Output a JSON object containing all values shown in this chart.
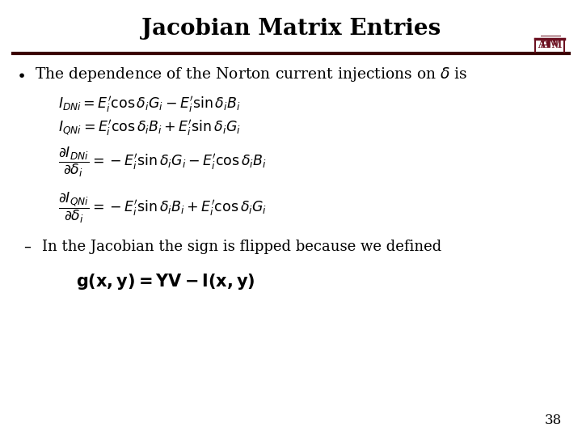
{
  "title": "Jacobian Matrix Entries",
  "title_fontsize": 20,
  "title_fontweight": "bold",
  "bg_color": "#ffffff",
  "title_color": "#000000",
  "text_color": "#000000",
  "line_color": "#3b0000",
  "logo_color": "#6b1020",
  "bullet_text": "The dependence of the Norton current injections on $\\delta$ is",
  "bullet_fontsize": 13.5,
  "eq1": "$I_{DNi} = E_i^{\\prime} \\cos \\delta_i G_i - E_i^{\\prime} \\sin \\delta_i B_i$",
  "eq2": "$I_{QNi} = E_i^{\\prime} \\cos \\delta_i B_i + E_i^{\\prime} \\sin \\delta_i G_i$",
  "eq3": "$\\dfrac{\\partial I_{DNi}}{\\partial \\delta_i} = -E_i^{\\prime} \\sin \\delta_i G_i - E_i^{\\prime} \\cos \\delta_i B_i$",
  "eq4": "$\\dfrac{\\partial I_{QNi}}{\\partial \\delta_i} = -E_i^{\\prime} \\sin \\delta_i B_i + E_i^{\\prime} \\cos \\delta_i G_i$",
  "sub_bullet": "In the Jacobian the sign is flipped because we defined",
  "sub_bullet_fontsize": 13,
  "eq5": "$\\mathbf{g(x,y) = YV - I(x,y)}$",
  "eq5_fontsize": 15,
  "page_number": "38",
  "eq_fontsize": 12.5
}
